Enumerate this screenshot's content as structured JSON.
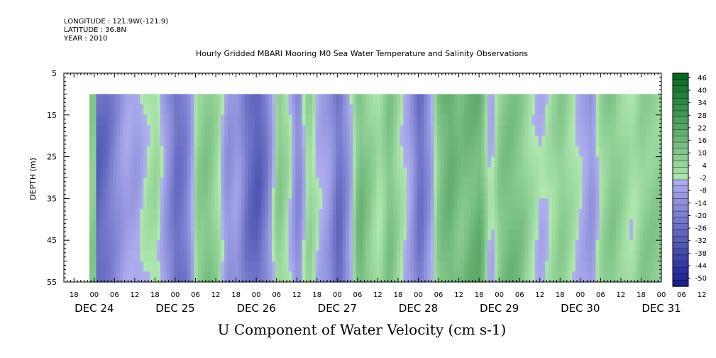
{
  "header": {
    "longitude": "LONGITUDE : 121.9W(-121.9)",
    "latitude": "LATITUDE : 36.8N",
    "year": "YEAR : 2010"
  },
  "chart_data": {
    "type": "heatmap",
    "title": "Hourly Gridded MBARI Mooring M0 Sea Water Temperature and Salinity Observations",
    "xlabel": "U Component of Water Velocity (cm s-1)",
    "ylabel": "DEPTH (m)",
    "ylim": [
      55,
      5
    ],
    "y_ticks": [
      5,
      15,
      25,
      35,
      45,
      55
    ],
    "x_hour_ticks": [
      "18",
      "00",
      "06",
      "12",
      "18",
      "00",
      "06",
      "12",
      "18",
      "00",
      "06",
      "12",
      "18",
      "00",
      "06",
      "12",
      "18",
      "00",
      "06",
      "12",
      "18",
      "00",
      "06",
      "12",
      "18",
      "00",
      "06",
      "12",
      "18",
      "00",
      "06",
      "12"
    ],
    "x_day_labels": [
      "DEC 24",
      "DEC 25",
      "DEC 26",
      "DEC 27",
      "DEC 28",
      "DEC 29",
      "DEC 30",
      "DEC 31"
    ],
    "data_depth_range": [
      10,
      55
    ],
    "colorbar": {
      "levels": [
        46,
        40,
        34,
        28,
        22,
        16,
        10,
        4,
        -2,
        -8,
        -14,
        -20,
        -26,
        -32,
        -38,
        -44,
        -50
      ],
      "range": [
        -50,
        50
      ]
    },
    "time_profile": [
      {
        "t": 0,
        "v": -24
      },
      {
        "t": 3,
        "v": -20
      },
      {
        "t": 6,
        "v": -12
      },
      {
        "t": 9,
        "v": -4
      },
      {
        "t": 12,
        "v": -6
      },
      {
        "t": 15,
        "v": 2
      },
      {
        "t": 18,
        "v": 6
      },
      {
        "t": 21,
        "v": -10
      },
      {
        "t": 24,
        "v": -26
      },
      {
        "t": 27,
        "v": -18
      },
      {
        "t": 30,
        "v": 10
      },
      {
        "t": 33,
        "v": 14
      },
      {
        "t": 36,
        "v": 6
      },
      {
        "t": 39,
        "v": -10
      },
      {
        "t": 42,
        "v": -6
      },
      {
        "t": 45,
        "v": -20
      },
      {
        "t": 48,
        "v": -26
      },
      {
        "t": 51,
        "v": -14
      },
      {
        "t": 54,
        "v": 12
      },
      {
        "t": 57,
        "v": 4
      },
      {
        "t": 60,
        "v": -16
      },
      {
        "t": 63,
        "v": 10
      },
      {
        "t": 66,
        "v": -2
      },
      {
        "t": 69,
        "v": -8
      },
      {
        "t": 72,
        "v": -26
      },
      {
        "t": 75,
        "v": -8
      },
      {
        "t": 78,
        "v": 18
      },
      {
        "t": 81,
        "v": 10
      },
      {
        "t": 84,
        "v": 2
      },
      {
        "t": 87,
        "v": 14
      },
      {
        "t": 90,
        "v": 4
      },
      {
        "t": 93,
        "v": -4
      },
      {
        "t": 96,
        "v": -22
      },
      {
        "t": 99,
        "v": -8
      },
      {
        "t": 102,
        "v": 16
      },
      {
        "t": 105,
        "v": 22
      },
      {
        "t": 108,
        "v": 16
      },
      {
        "t": 111,
        "v": 20
      },
      {
        "t": 114,
        "v": 22
      },
      {
        "t": 117,
        "v": -4
      },
      {
        "t": 120,
        "v": 14
      },
      {
        "t": 123,
        "v": 16
      },
      {
        "t": 126,
        "v": 12
      },
      {
        "t": 129,
        "v": 4
      },
      {
        "t": 132,
        "v": -2
      },
      {
        "t": 135,
        "v": 4
      },
      {
        "t": 138,
        "v": 10
      },
      {
        "t": 141,
        "v": 4
      },
      {
        "t": 144,
        "v": -2
      },
      {
        "t": 147,
        "v": -10
      },
      {
        "t": 150,
        "v": 8
      },
      {
        "t": 153,
        "v": 14
      },
      {
        "t": 156,
        "v": 8
      },
      {
        "t": 159,
        "v": 2
      },
      {
        "t": 162,
        "v": 10
      }
    ]
  }
}
